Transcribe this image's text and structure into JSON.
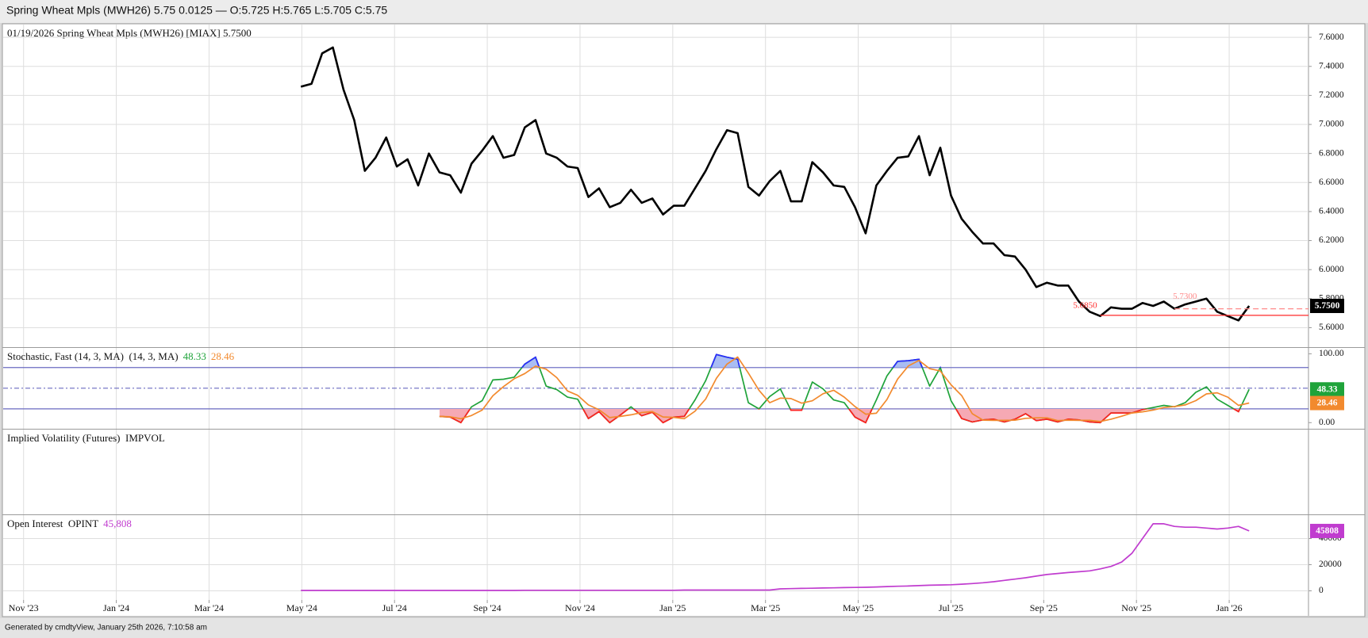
{
  "header": {
    "title": "Spring Wheat Mpls (MWH26) 5.75 0.0125 — O:5.725 H:5.765 L:5.705 C:5.75"
  },
  "footer": {
    "text": "Generated by cmdtyView, January 25th 2026, 7:10:58 am"
  },
  "chart_data": [
    {
      "type": "line",
      "title": "01/19/2026 Spring Wheat Mpls (MWH26) [MIAX] 5.7500",
      "x": [
        5.98,
        6.21,
        6.44,
        6.67,
        6.9,
        7.13,
        7.36,
        7.59,
        7.82,
        8.05,
        8.28,
        8.51,
        8.74,
        8.97,
        9.2,
        9.43,
        9.66,
        9.89,
        10.12,
        10.35,
        10.58,
        10.81,
        11.04,
        11.27,
        11.5,
        11.73,
        11.95,
        12.18,
        12.41,
        12.64,
        12.87,
        13.1,
        13.33,
        13.56,
        13.79,
        14.02,
        14.25,
        14.48,
        14.71,
        14.94,
        15.17,
        15.4,
        15.63,
        15.86,
        16.09,
        16.32,
        16.55,
        16.78,
        17.01,
        17.24,
        17.47,
        17.7,
        17.93,
        18.16,
        18.39,
        18.62,
        18.85,
        19.08,
        19.31,
        19.54,
        19.77,
        20.0,
        20.23,
        20.46,
        20.69,
        20.92,
        21.15,
        21.38,
        21.61,
        21.84,
        22.07,
        22.3,
        22.53,
        22.76,
        22.99,
        23.22,
        23.45,
        23.68,
        23.9,
        24.13,
        24.36,
        24.59,
        24.82,
        25.05,
        25.28,
        25.51,
        25.74,
        25.97,
        26.2,
        26.43
      ],
      "values": [
        7.26,
        7.28,
        7.49,
        7.53,
        7.24,
        7.03,
        6.68,
        6.77,
        6.91,
        6.71,
        6.76,
        6.58,
        6.8,
        6.67,
        6.65,
        6.53,
        6.73,
        6.82,
        6.92,
        6.77,
        6.79,
        6.98,
        7.03,
        6.8,
        6.77,
        6.71,
        6.7,
        6.5,
        6.56,
        6.43,
        6.46,
        6.55,
        6.46,
        6.49,
        6.38,
        6.44,
        6.44,
        6.56,
        6.68,
        6.83,
        6.96,
        6.94,
        6.57,
        6.51,
        6.61,
        6.68,
        6.47,
        6.47,
        6.74,
        6.67,
        6.58,
        6.57,
        6.43,
        6.25,
        6.58,
        6.68,
        6.77,
        6.78,
        6.92,
        6.65,
        6.84,
        6.51,
        6.35,
        6.26,
        6.18,
        6.18,
        6.1,
        6.09,
        6.0,
        5.88,
        5.91,
        5.89,
        5.89,
        5.78,
        5.71,
        5.68,
        5.74,
        5.73,
        5.73,
        5.77,
        5.75,
        5.78,
        5.73,
        5.76,
        5.78,
        5.8,
        5.71,
        5.68,
        5.65,
        5.75
      ],
      "color": "#000000",
      "last_label": "5.7500",
      "ylim": [
        5.466,
        7.688
      ],
      "yticks": [
        {
          "value": 5.6,
          "label": "5.6000"
        },
        {
          "value": 5.8,
          "label": "5.8000"
        },
        {
          "value": 6.0,
          "label": "6.0000"
        },
        {
          "value": 6.2,
          "label": "6.2000"
        },
        {
          "value": 6.4,
          "label": "6.4000"
        },
        {
          "value": 6.6,
          "label": "6.6000"
        },
        {
          "value": 6.8,
          "label": "6.8000"
        },
        {
          "value": 7.0,
          "label": "7.0000"
        },
        {
          "value": 7.2,
          "label": "7.2000"
        },
        {
          "value": 7.4,
          "label": "7.4000"
        },
        {
          "value": 7.6,
          "label": "7.6000"
        }
      ],
      "grid": true,
      "annotations": [
        {
          "value": 5.685,
          "label": "5.6850",
          "color": "#ff2a2a",
          "style": "solid"
        },
        {
          "value": 5.73,
          "label": "5.7300",
          "color": "#ff8a8a",
          "style": "dashed"
        }
      ]
    },
    {
      "type": "line",
      "title": "Stochastic, Fast (14, 3, MA)  (14, 3, MA)",
      "series": [
        {
          "color": "#1fa33a",
          "values": [
            null,
            null,
            null,
            null,
            null,
            null,
            null,
            null,
            null,
            null,
            null,
            null,
            null,
            9,
            8,
            0,
            23,
            32,
            62,
            63,
            66,
            85,
            95,
            53,
            48,
            37,
            34,
            6,
            16,
            0,
            11,
            23,
            10,
            15,
            0,
            8,
            9,
            33,
            61,
            99,
            95,
            92,
            29,
            20,
            38,
            49,
            18,
            18,
            59,
            49,
            33,
            29,
            8,
            0,
            33,
            68,
            89,
            90,
            92,
            53,
            80,
            32,
            6,
            1,
            4,
            5,
            1,
            5,
            13,
            3,
            5,
            1,
            5,
            4,
            1,
            0,
            14,
            14,
            14,
            19,
            22,
            25,
            23,
            29,
            44,
            52,
            34,
            25,
            16,
            48.33
          ]
        },
        {
          "color": "#f28a2e",
          "values": [
            null,
            null,
            null,
            null,
            null,
            null,
            null,
            null,
            null,
            null,
            null,
            null,
            null,
            9,
            8.5,
            5.7,
            10.3,
            18.3,
            39,
            52.3,
            63.7,
            71.3,
            82,
            77.7,
            65.3,
            46,
            39.7,
            25.7,
            18.7,
            7.3,
            9,
            11.3,
            14.7,
            16,
            8.3,
            7.7,
            5.7,
            16.7,
            34.3,
            64.3,
            85,
            95.3,
            72,
            47,
            29,
            35.7,
            35,
            28.3,
            31.7,
            42,
            47,
            37,
            23.3,
            12.3,
            13.7,
            33.7,
            63.3,
            82.3,
            90.3,
            78.3,
            75,
            55,
            39.3,
            13,
            3.7,
            3.3,
            3.3,
            3.7,
            6.3,
            7,
            7,
            3,
            3.7,
            3.3,
            3.3,
            1.7,
            5,
            9.3,
            14,
            15.7,
            18.3,
            22,
            23.3,
            25.7,
            32,
            41.7,
            43.3,
            37,
            25,
            28.46
          ]
        }
      ],
      "ylim": [
        -8.9,
        108.5
      ],
      "yticks": [
        {
          "value": 100,
          "label": "100.00"
        },
        {
          "value": 0,
          "label": "0.00"
        }
      ],
      "levels": [
        {
          "value": 80,
          "style": "solid"
        },
        {
          "value": 50,
          "style": "dashdot"
        },
        {
          "value": 20,
          "style": "solid"
        }
      ],
      "level_color": "#6a6ac0",
      "bands": [
        {
          "level": 20,
          "side": "below",
          "color": "#ff2020",
          "fill": "#f6a9b4"
        },
        {
          "level": 80,
          "side": "above",
          "color": "#2a2aff",
          "fill": "#a9bdf3"
        }
      ]
    },
    {
      "type": "line",
      "title": "Implied Volatility (Futures)  IMPVOL"
    },
    {
      "type": "line",
      "title": "Open Interest  OPINT",
      "values": [
        300,
        300,
        300,
        300,
        300,
        300,
        300,
        300,
        300,
        300,
        300,
        300,
        300,
        300,
        300,
        300,
        300,
        300,
        300,
        300,
        300,
        400,
        400,
        400,
        400,
        400,
        400,
        400,
        400,
        400,
        400,
        400,
        400,
        400,
        400,
        400,
        600,
        600,
        600,
        600,
        600,
        600,
        600,
        600,
        600,
        1500,
        1700,
        1900,
        2000,
        2200,
        2300,
        2500,
        2600,
        2700,
        3000,
        3300,
        3500,
        3700,
        4000,
        4300,
        4500,
        4700,
        5100,
        5600,
        6200,
        7000,
        8000,
        9000,
        10000,
        11300,
        12500,
        13300,
        14000,
        14600,
        15300,
        16800,
        18700,
        22000,
        28700,
        40000,
        51300,
        51300,
        49300,
        48700,
        48700,
        48000,
        47300,
        48000,
        49300,
        45808
      ],
      "color": "#c03ccf",
      "last_label": "45,808",
      "ylim": [
        -6970,
        57900
      ],
      "yticks": [
        0,
        20000,
        40000
      ],
      "grid": true,
      "xlim": [
        -0.44,
        27.71
      ],
      "xticks": [
        {
          "value": 0,
          "label": "Nov '23"
        },
        {
          "value": 2,
          "label": "Jan '24"
        },
        {
          "value": 4,
          "label": "Mar '24"
        },
        {
          "value": 6,
          "label": "May '24"
        },
        {
          "value": 8,
          "label": "Jul '24"
        },
        {
          "value": 10,
          "label": "Sep '24"
        },
        {
          "value": 12,
          "label": "Nov '24"
        },
        {
          "value": 14,
          "label": "Jan '25"
        },
        {
          "value": 16,
          "label": "Mar '25"
        },
        {
          "value": 18,
          "label": "May '25"
        },
        {
          "value": 20,
          "label": "Jul '25"
        },
        {
          "value": 22,
          "label": "Sep '25"
        },
        {
          "value": 24,
          "label": "Nov '25"
        },
        {
          "value": 26,
          "label": "Jan '26"
        }
      ]
    }
  ]
}
